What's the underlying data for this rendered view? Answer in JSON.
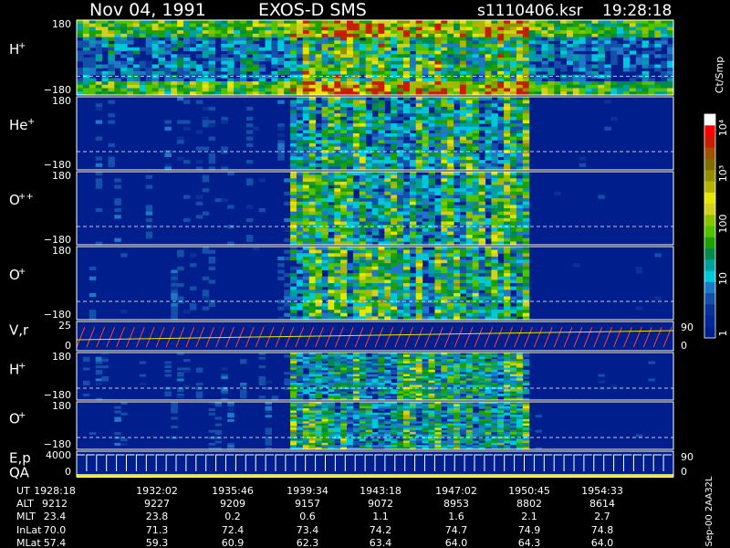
{
  "header": {
    "date": "Nov 04, 1991",
    "instrument": "EXOS-D SMS",
    "file": "s1110406.ksr",
    "time": "19:28:18"
  },
  "colorbar": {
    "unit": "Ct/Smp",
    "tick_labels": [
      "10⁴",
      "10³",
      "100",
      "10",
      "1"
    ],
    "colors": [
      "#ffffff",
      "#ff0000",
      "#c81e00",
      "#a05000",
      "#806e00",
      "#909000",
      "#b4b400",
      "#e6e600",
      "#d2d21e",
      "#8cc300",
      "#50c300",
      "#1ea000",
      "#008c46",
      "#00a0a0",
      "#00c8dc",
      "#1e78c8",
      "#1450aa",
      "#0a3296",
      "#002896",
      "#001e8c"
    ]
  },
  "panels": [
    {
      "id": "h-plus",
      "label": "H",
      "sup": "+",
      "ytop": "180",
      "ybot": "−180"
    },
    {
      "id": "he-plus",
      "label": "He",
      "sup": "+",
      "ytop": "180",
      "ybot": "−180"
    },
    {
      "id": "o-plus-plus",
      "label": "O",
      "sup": "++",
      "ytop": "180",
      "ybot": "−180"
    },
    {
      "id": "o-plus",
      "label": "O",
      "sup": "+",
      "ytop": "180",
      "ybot": "−180"
    },
    {
      "id": "vr",
      "label": "V,r",
      "sup": "",
      "ytop": "25",
      "ybot": "0",
      "rtop": "90",
      "rbot": "0"
    },
    {
      "id": "h-plus-2",
      "label": "H",
      "sup": "+",
      "ytop": "180",
      "ybot": "−180"
    },
    {
      "id": "o-plus-2",
      "label": "O",
      "sup": "+",
      "ytop": "180",
      "ybot": "−180"
    },
    {
      "id": "ep-qa",
      "label": "E,p",
      "label2": "QA",
      "sup": "",
      "ytop": "4000",
      "ybot": "0",
      "rtop": "90",
      "rbot": "0"
    }
  ],
  "footer": {
    "side_label": "Sep-00  2AA32L",
    "rows": [
      {
        "name": "UT",
        "values": [
          "1928:18",
          "1932:02",
          "1935:46",
          "1939:34",
          "1943:18",
          "1947:02",
          "1950:45",
          "1954:33"
        ]
      },
      {
        "name": "ALT",
        "values": [
          "9212",
          "9227",
          "9209",
          "9157",
          "9072",
          "8953",
          "8802",
          "8614"
        ]
      },
      {
        "name": "MLT",
        "values": [
          "23.4",
          "23.8",
          "0.2",
          "0.6",
          "1.1",
          "1.6",
          "2.1",
          "2.7"
        ]
      },
      {
        "name": "InLat",
        "values": [
          "70.0",
          "71.3",
          "72.4",
          "73.4",
          "74.2",
          "74.7",
          "74.9",
          "74.8"
        ]
      },
      {
        "name": "MLat",
        "values": [
          "57.4",
          "59.3",
          "60.9",
          "62.3",
          "63.4",
          "64.0",
          "64.3",
          "64.0"
        ]
      }
    ]
  },
  "chart_data": {
    "type": "heatmap",
    "title": "Nov 04, 1991   EXOS-D SMS",
    "x_ticks_ut": [
      "1928:18",
      "1932:02",
      "1935:46",
      "1939:34",
      "1943:18",
      "1947:02",
      "1950:45",
      "1954:33"
    ],
    "panel_y_ranges": {
      "H+": [
        -180,
        180
      ],
      "He+": [
        -180,
        180
      ],
      "O++": [
        -180,
        180
      ],
      "O+": [
        -180,
        180
      ],
      "V,r": [
        0,
        25
      ],
      "E,p": [
        0,
        4000
      ]
    },
    "right_axis_ranges": {
      "V,r": [
        0,
        90
      ],
      "E,p / QA": [
        0,
        90
      ]
    },
    "colorbar_unit": "Ct/Smp",
    "colorbar_ticks": [
      "1",
      "10",
      "100",
      "10³",
      "10⁴"
    ]
  }
}
